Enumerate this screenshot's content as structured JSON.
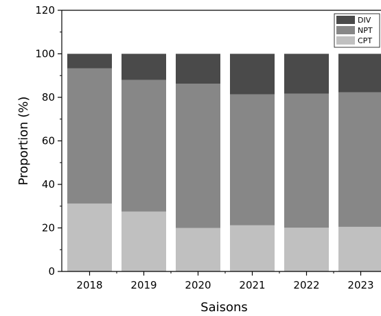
{
  "chart_data": {
    "type": "bar",
    "stacked": true,
    "categories": [
      "2018",
      "2019",
      "2020",
      "2021",
      "2022",
      "2023"
    ],
    "series": [
      {
        "name": "CPT",
        "color": "#c0c0c0",
        "values": [
          31.2,
          27.5,
          20.0,
          21.2,
          20.1,
          20.5
        ]
      },
      {
        "name": "NPT",
        "color": "#878787",
        "values": [
          62.1,
          60.5,
          66.3,
          60.2,
          61.6,
          61.8
        ]
      },
      {
        "name": "DIV",
        "color": "#4a4a4a",
        "values": [
          6.7,
          12.0,
          13.7,
          18.6,
          18.3,
          17.7
        ]
      }
    ],
    "xlabel": "Saisons",
    "ylabel": "Proportion (%)",
    "ylim": [
      0,
      120
    ],
    "yticks": [
      "0",
      "20",
      "40",
      "60",
      "80",
      "100",
      "120"
    ],
    "legend": {
      "position": "top-right",
      "order": [
        "DIV",
        "NPT",
        "CPT"
      ]
    },
    "grid": false
  }
}
